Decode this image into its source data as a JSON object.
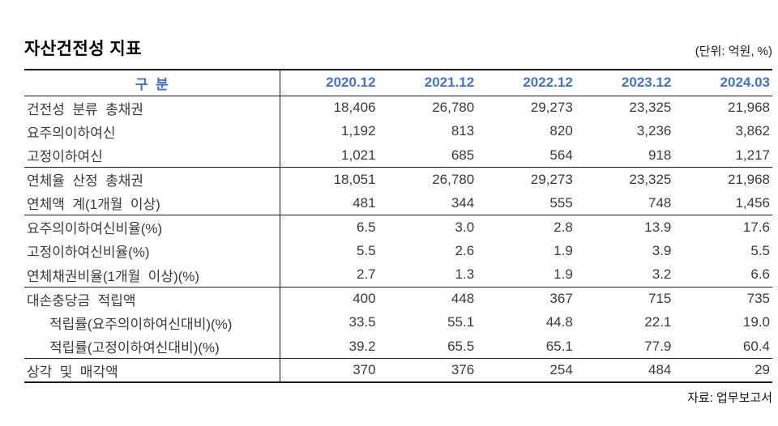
{
  "title": "자산건전성 지표",
  "unit_label": "(단위: 억원, %)",
  "source_label": "자료: 업무보고서",
  "colors": {
    "header_text": "#4472c8",
    "body_text": "#3a3a3a",
    "rule_lines": "#1c1c1c"
  },
  "table": {
    "header": {
      "label": "구  분",
      "columns": [
        "2020.12",
        "2021.12",
        "2022.12",
        "2023.12",
        "2024.03"
      ]
    },
    "rows": [
      {
        "label": "건전성  분류  총채권",
        "values": [
          "18,406",
          "26,780",
          "29,273",
          "23,325",
          "21,968"
        ]
      },
      {
        "label": "요주의이하여신",
        "values": [
          "1,192",
          "813",
          "820",
          "3,236",
          "3,862"
        ]
      },
      {
        "label": "고정이하여신",
        "values": [
          "1,021",
          "685",
          "564",
          "918",
          "1,217"
        ]
      },
      {
        "label": "연체율  산정  총채권",
        "values": [
          "18,051",
          "26,780",
          "29,273",
          "23,325",
          "21,968"
        ]
      },
      {
        "label": "연체액  계(1개월  이상)",
        "values": [
          "481",
          "344",
          "555",
          "748",
          "1,456"
        ]
      },
      {
        "label": "요주의이하여신비율(%)",
        "values": [
          "6.5",
          "3.0",
          "2.8",
          "13.9",
          "17.6"
        ]
      },
      {
        "label": "고정이하여신비율(%)",
        "values": [
          "5.5",
          "2.6",
          "1.9",
          "3.9",
          "5.5"
        ]
      },
      {
        "label": "연체채권비율(1개월  이상)(%)",
        "values": [
          "2.7",
          "1.3",
          "1.9",
          "3.2",
          "6.6"
        ]
      },
      {
        "label": "대손충당금  적립액",
        "values": [
          "400",
          "448",
          "367",
          "715",
          "735"
        ]
      },
      {
        "label": "적립률(요주의이하여신대비)(%)",
        "values": [
          "33.5",
          "55.1",
          "44.8",
          "22.1",
          "19.0"
        ]
      },
      {
        "label": "적립률(고정이하여신대비)(%)",
        "values": [
          "39.2",
          "65.5",
          "65.1",
          "77.9",
          "60.4"
        ]
      },
      {
        "label": "상각  및  매각액",
        "values": [
          "370",
          "376",
          "254",
          "484",
          "29"
        ]
      }
    ]
  }
}
